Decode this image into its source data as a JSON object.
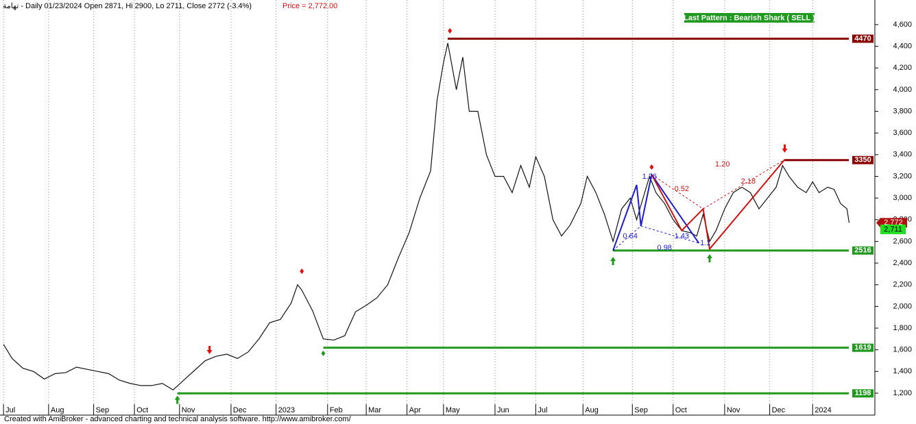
{
  "chart_data": {
    "type": "line",
    "title": "تهامة - Daily 01/23/2024 Open 2871, Hi 2900, Lo 2711, Close 2772 (-3.4%)",
    "price_label": "Price = 2,772.00",
    "badge": "Last Pattern : Bearish Shark ( SELL )",
    "footer": "Created with AmiBroker - advanced charting and technical analysis software. http://www.amibroker.com/",
    "color": "#111111",
    "x": [
      1,
      5,
      10,
      15,
      20,
      25,
      30,
      35,
      40,
      45,
      50,
      55,
      60,
      65,
      70,
      75,
      80,
      85,
      90,
      95,
      100,
      105,
      110,
      115,
      120,
      125,
      130,
      135,
      138,
      140,
      145,
      150,
      155,
      160,
      165,
      170,
      175,
      180,
      185,
      190,
      195,
      200,
      203,
      206,
      208,
      212,
      215,
      218,
      222,
      226,
      230,
      234,
      238,
      242,
      246,
      249,
      253,
      257,
      261,
      265,
      270,
      273,
      277,
      281,
      285,
      289,
      293,
      296,
      299,
      302,
      305,
      309,
      313,
      317,
      321,
      324,
      327,
      330,
      333,
      337,
      341,
      345,
      349,
      353,
      357,
      361,
      364,
      367,
      371,
      375,
      378,
      381,
      385,
      388,
      391,
      394,
      395
    ],
    "values": [
      1650,
      1520,
      1430,
      1400,
      1330,
      1380,
      1390,
      1440,
      1420,
      1400,
      1380,
      1320,
      1290,
      1270,
      1270,
      1290,
      1230,
      1320,
      1410,
      1500,
      1540,
      1560,
      1520,
      1580,
      1700,
      1850,
      1880,
      2030,
      2200,
      2150,
      1960,
      1700,
      1690,
      1730,
      1950,
      2010,
      2080,
      2200,
      2450,
      2680,
      3000,
      3250,
      3900,
      4250,
      4430,
      4000,
      4300,
      3800,
      3800,
      3400,
      3200,
      3200,
      3050,
      3300,
      3100,
      3380,
      3200,
      2800,
      2650,
      2750,
      2950,
      3200,
      3050,
      2850,
      2600,
      2900,
      3000,
      2800,
      3000,
      3200,
      3050,
      2950,
      2800,
      2700,
      2680,
      2650,
      2850,
      2600,
      2700,
      2900,
      3050,
      3100,
      3050,
      2900,
      3000,
      3100,
      3300,
      3200,
      3100,
      3050,
      3150,
      3050,
      3100,
      3080,
      2950,
      2900,
      2772
    ],
    "xlim": [
      0,
      407
    ],
    "xticks": [
      {
        "value": 1,
        "label": "Jul"
      },
      {
        "value": 22,
        "label": "Aug"
      },
      {
        "value": 43,
        "label": "Sep"
      },
      {
        "value": 62,
        "label": "Oct"
      },
      {
        "value": 83,
        "label": "Nov"
      },
      {
        "value": 107,
        "label": "Dec"
      },
      {
        "value": 128,
        "label": "2023"
      },
      {
        "value": 152,
        "label": "Feb"
      },
      {
        "value": 170,
        "label": "Mar"
      },
      {
        "value": 189,
        "label": "Apr"
      },
      {
        "value": 206,
        "label": "May"
      },
      {
        "value": 230,
        "label": "Jun"
      },
      {
        "value": 249,
        "label": "Jul"
      },
      {
        "value": 271,
        "label": "Aug"
      },
      {
        "value": 294,
        "label": "Sep"
      },
      {
        "value": 313,
        "label": "Oct"
      },
      {
        "value": 337,
        "label": "Nov"
      },
      {
        "value": 358,
        "label": "Dec"
      },
      {
        "value": 378,
        "label": "2024"
      }
    ],
    "ylim": [
      1004,
      4827
    ],
    "yticks": [
      {
        "value": 1200,
        "label": "1,200"
      },
      {
        "value": 1400,
        "label": "1,400"
      },
      {
        "value": 1600,
        "label": "1,600"
      },
      {
        "value": 1800,
        "label": "1,800"
      },
      {
        "value": 2000,
        "label": "2,000"
      },
      {
        "value": 2200,
        "label": "2,200"
      },
      {
        "value": 2400,
        "label": "2,400"
      },
      {
        "value": 2600,
        "label": "2,600"
      },
      {
        "value": 2800,
        "label": "2,800"
      },
      {
        "value": 3000,
        "label": "3,000"
      },
      {
        "value": 3200,
        "label": "3,200"
      },
      {
        "value": 3400,
        "label": "3,400"
      },
      {
        "value": 3600,
        "label": "3,600"
      },
      {
        "value": 3800,
        "label": "3,800"
      },
      {
        "value": 4000,
        "label": "4,000"
      },
      {
        "value": 4200,
        "label": "4,200"
      },
      {
        "value": 4400,
        "label": "4,400"
      },
      {
        "value": 4600,
        "label": "4,600"
      }
    ],
    "grid": true,
    "levels": {
      "values": [
        4470,
        3350,
        2516,
        1619,
        1198
      ],
      "start": [
        208,
        365,
        285,
        150,
        82
      ],
      "colors": [
        "#8b0000",
        "#8b0000",
        "#1f9a1f",
        "#1f9a1f",
        "#1f9a1f"
      ]
    },
    "last_price": {
      "close": 2772,
      "close_label": "2,772",
      "low": 2711,
      "low_label": "2,711"
    },
    "patterns": [
      {
        "color": "#1a1ad0",
        "x": [
          285,
          296,
          298,
          303,
          325
        ],
        "y": [
          2516,
          3121,
          2742,
          3216,
          2584
        ]
      },
      {
        "color": "#cc1111",
        "x": [
          303,
          317,
          327,
          330,
          365
        ],
        "y": [
          3216,
          2700,
          2900,
          2530,
          3355
        ]
      }
    ],
    "annotations": [
      {
        "text": "1.26",
        "x": 302,
        "y": 3197,
        "color": "#1a1ad0"
      },
      {
        "text": "0.64",
        "x": 293,
        "y": 2647,
        "color": "#1a1ad0"
      },
      {
        "text": "1.43",
        "x": 317,
        "y": 2647,
        "color": "#1a1ad0"
      },
      {
        "text": "0.98",
        "x": 309,
        "y": 2540,
        "color": "#1a1ad0"
      },
      {
        "text": "1.1",
        "x": 328,
        "y": 2584,
        "color": "#1a1ad0"
      },
      {
        "text": "0.52",
        "x": 317,
        "y": 3083,
        "color": "#cc1111"
      },
      {
        "text": "2.18",
        "x": 348,
        "y": 3153,
        "color": "#cc1111"
      },
      {
        "text": "1.20",
        "x": 336,
        "y": 3311,
        "color": "#cc1111"
      }
    ],
    "markers": [
      {
        "kind": "diamond",
        "x": 209,
        "y": 4543,
        "color": "#e01010"
      },
      {
        "kind": "down",
        "x": 97,
        "y": 1592,
        "color": "#e01010"
      },
      {
        "kind": "diamond",
        "x": 140,
        "y": 2325,
        "color": "#e01010"
      },
      {
        "kind": "diamond",
        "x": 150,
        "y": 1567,
        "color": "#1f9a1f"
      },
      {
        "kind": "up",
        "x": 82,
        "y": 1145,
        "color": "#1f9a1f"
      },
      {
        "kind": "down",
        "x": 365,
        "y": 3450,
        "color": "#e01010"
      },
      {
        "kind": "diamond",
        "x": 303,
        "y": 3286,
        "color": "#e01010"
      },
      {
        "kind": "up",
        "x": 285,
        "y": 2426,
        "color": "#1f9a1f"
      },
      {
        "kind": "up",
        "x": 330,
        "y": 2451,
        "color": "#1f9a1f"
      }
    ]
  }
}
